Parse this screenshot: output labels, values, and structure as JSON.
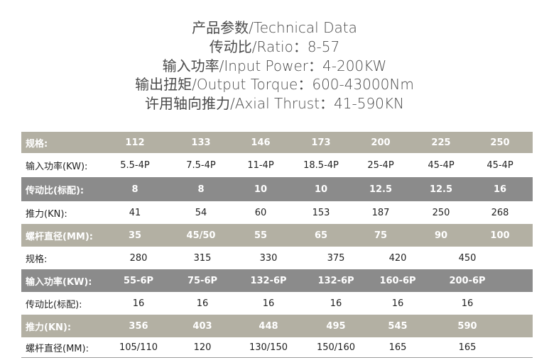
{
  "header": {
    "lines": [
      "产品参数/Technical Data",
      "传动比/Ratio：8-57",
      "输入功率/Input Power：4-200KW",
      "输出扭矩/Output Torque：600-43000Nm",
      "许用轴向推力/Axial Thrust：41-590KN"
    ]
  },
  "colors": {
    "tan": "#b3b0a3",
    "gray": "#8b8b8b"
  },
  "table1": {
    "rows": [
      {
        "label": "规格:",
        "values": [
          "112",
          "133",
          "146",
          "173",
          "200",
          "225",
          "250"
        ]
      },
      {
        "label": "输入功率(KW):",
        "values": [
          "5.5-4P",
          "7.5-4P",
          "11-4P",
          "18.5-4P",
          "25-4P",
          "45-4P",
          "45-4P"
        ]
      },
      {
        "label": "传动比(标配):",
        "values": [
          "8",
          "8",
          "10",
          "10",
          "12.5",
          "12.5",
          "16"
        ]
      },
      {
        "label": "推力(KN):",
        "values": [
          "41",
          "54",
          "60",
          "153",
          "187",
          "250",
          "268"
        ]
      },
      {
        "label": "螺杆直径(MM):",
        "values": [
          "35",
          "45/50",
          "55",
          "65",
          "75",
          "90",
          "100"
        ]
      }
    ]
  },
  "table2": {
    "rows": [
      {
        "label": "规格:",
        "values": [
          "280",
          "315",
          "330",
          "375",
          "420",
          "450"
        ]
      },
      {
        "label": "输入功率(KW):",
        "values": [
          "55-6P",
          "75-6P",
          "132-6P",
          "132-6P",
          "160-6P",
          "200-6P"
        ]
      },
      {
        "label": "传动比(标配):",
        "values": [
          "16",
          "16",
          "16",
          "16",
          "16",
          "16"
        ]
      },
      {
        "label": "推力(KN):",
        "values": [
          "356",
          "403",
          "448",
          "495",
          "545",
          "590"
        ]
      },
      {
        "label": "螺杆直径(MM):",
        "values": [
          "105/110",
          "120",
          "130/150",
          "150/160",
          "165",
          "165"
        ]
      }
    ]
  }
}
